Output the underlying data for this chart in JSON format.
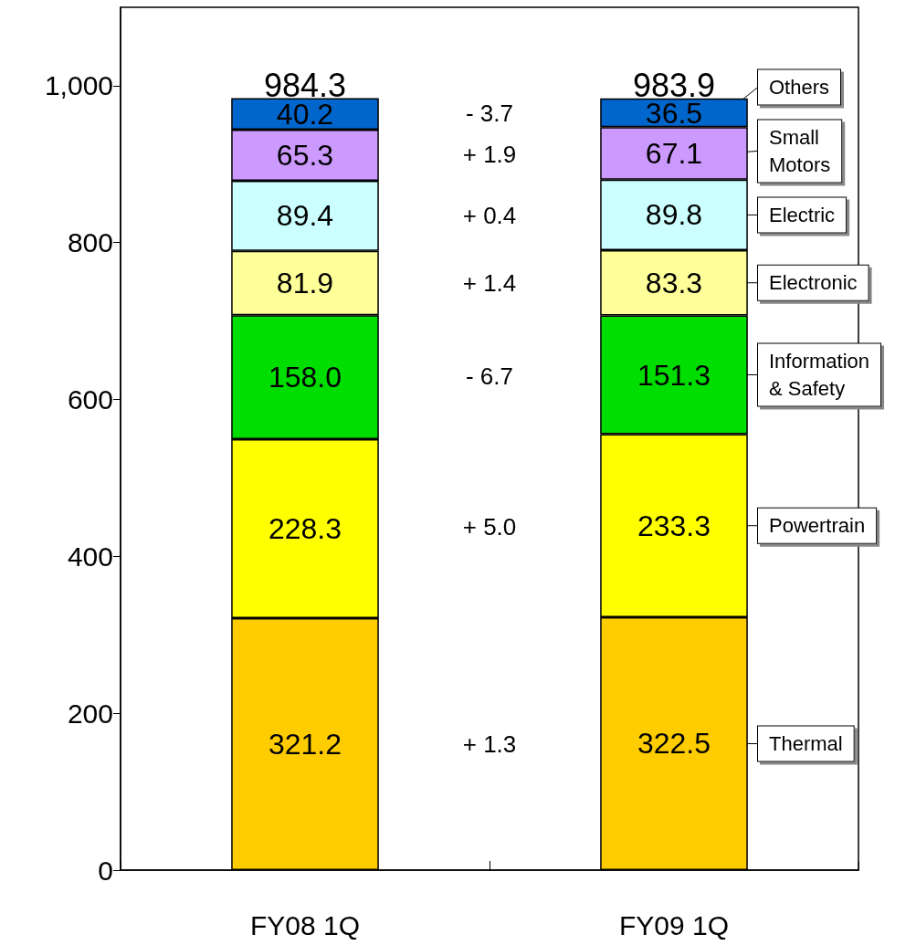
{
  "chart_data": {
    "type": "bar",
    "stacked": true,
    "categories": [
      "FY08 1Q",
      "FY09 1Q"
    ],
    "series": [
      {
        "name": "Thermal",
        "color": "#ffcc00",
        "values": [
          321.2,
          322.5
        ],
        "value_labels": [
          "321.2",
          "322.5"
        ]
      },
      {
        "name": "Powertrain",
        "color": "#ffff00",
        "values": [
          228.3,
          233.3
        ],
        "value_labels": [
          "228.3",
          "233.3"
        ]
      },
      {
        "name": "Information & Safety",
        "color": "#00dd00",
        "values": [
          158.0,
          151.3
        ],
        "value_labels": [
          "158.0",
          "151.3"
        ]
      },
      {
        "name": "Electronic",
        "color": "#ffff99",
        "values": [
          81.9,
          83.3
        ],
        "value_labels": [
          "81.9",
          "83.3"
        ]
      },
      {
        "name": "Electric",
        "color": "#ccffff",
        "values": [
          89.4,
          89.8
        ],
        "value_labels": [
          "89.4",
          "89.8"
        ]
      },
      {
        "name": "Small Motors",
        "color": "#cc99ff",
        "values": [
          65.3,
          67.1
        ],
        "value_labels": [
          "65.3",
          "67.1"
        ]
      },
      {
        "name": "Others",
        "color": "#0066cc",
        "values": [
          40.2,
          36.5
        ],
        "value_labels": [
          "40.2",
          "36.5"
        ]
      }
    ],
    "totals": [
      "984.3",
      "983.9"
    ],
    "annotations": [
      "- 3.7",
      "+ 1.9",
      "+ 0.4",
      "+ 1.4",
      "- 6.7",
      "+ 5.0",
      "+ 1.3"
    ],
    "ylim": [
      0,
      1100
    ],
    "yticks": [
      0,
      200,
      400,
      600,
      800,
      {
        "value": 1000,
        "label": "1,000"
      }
    ],
    "grid": false,
    "legend": "right"
  }
}
